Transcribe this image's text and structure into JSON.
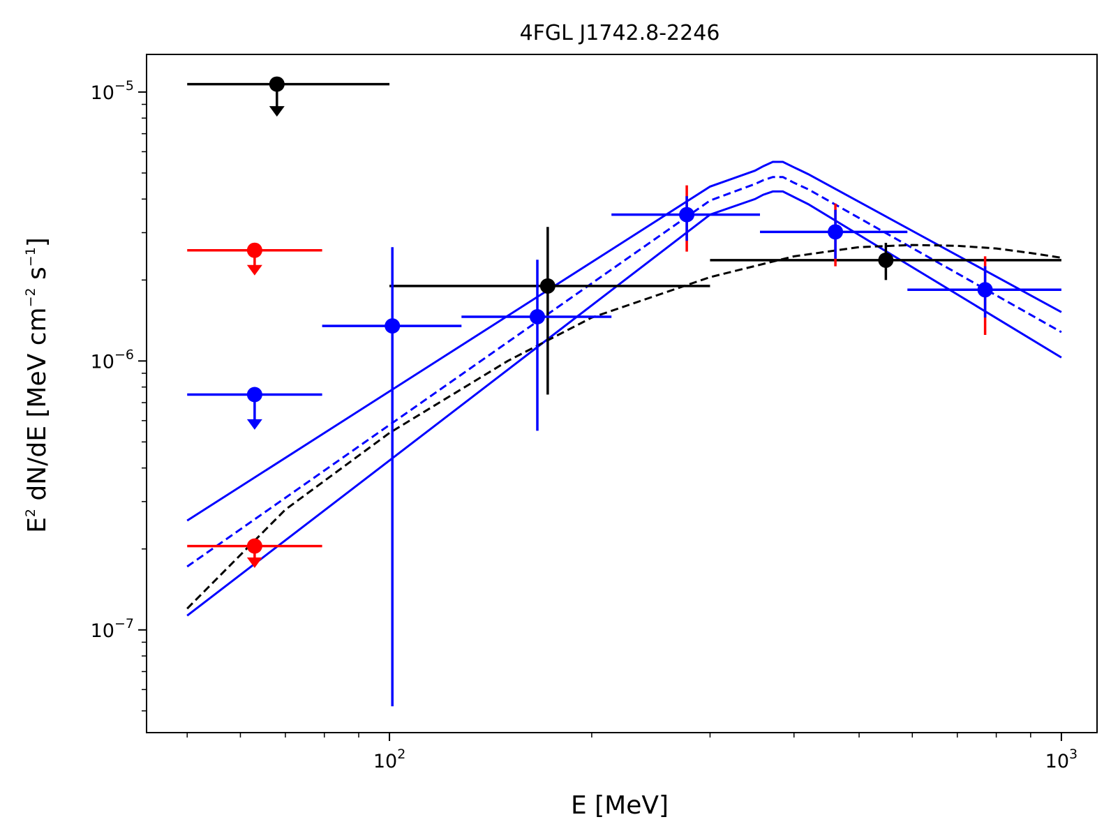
{
  "chart_data": {
    "type": "scatter",
    "title": "4FGL J1742.8-2246",
    "xlabel": "E [MeV]",
    "ylabel": {
      "base": "E",
      "base_sup": "2",
      "mid": " dN/dE [MeV cm",
      "mid_sup": "−2",
      "end": " s",
      "end_sup": "−1",
      "close": "]"
    },
    "xscale": "log",
    "yscale": "log",
    "xlim": [
      43.5,
      1130
    ],
    "ylim": [
      4.15e-08,
      1.38e-05
    ],
    "x_ticks": [
      {
        "value": 100,
        "base": "10",
        "exp": "2"
      },
      {
        "value": 1000,
        "base": "10",
        "exp": "3"
      }
    ],
    "y_ticks": [
      {
        "value": 1e-07,
        "base": "10",
        "exp": "−7"
      },
      {
        "value": 1e-06,
        "base": "10",
        "exp": "−6"
      },
      {
        "value": 1e-05,
        "base": "10",
        "exp": "−5"
      }
    ],
    "grid": false,
    "legend": "none",
    "lines": [
      {
        "color": "#0000ff",
        "dash": "solid",
        "x": [
          50,
          300,
          350,
          360,
          372,
          385,
          400,
          420,
          1000
        ],
        "y": [
          2.55e-07,
          4.45e-06,
          5.1e-06,
          5.3e-06,
          5.5e-06,
          5.5e-06,
          5.25e-06,
          4.95e-06,
          1.52e-06
        ]
      },
      {
        "color": "#0000ff",
        "dash": "dashed",
        "x": [
          50,
          300,
          350,
          360,
          372,
          385,
          400,
          420,
          1000
        ],
        "y": [
          1.72e-07,
          3.95e-06,
          4.55e-06,
          4.7e-06,
          4.83e-06,
          4.83e-06,
          4.6e-06,
          4.35e-06,
          1.28e-06
        ]
      },
      {
        "color": "#0000ff",
        "dash": "solid",
        "x": [
          50,
          300,
          350,
          360,
          372,
          385,
          400,
          420,
          1000
        ],
        "y": [
          1.13e-07,
          3.5e-06,
          4e-06,
          4.15e-06,
          4.27e-06,
          4.27e-06,
          4.07e-06,
          3.83e-06,
          1.03e-06
        ]
      },
      {
        "color": "#000000",
        "dash": "dashed",
        "x": [
          50,
          70,
          100,
          150,
          200,
          300,
          400,
          500,
          600,
          700,
          800,
          900,
          1000
        ],
        "y": [
          1.2e-07,
          2.8e-07,
          5.4e-07,
          1e-06,
          1.45e-06,
          2.05e-06,
          2.45e-06,
          2.65e-06,
          2.7e-06,
          2.68e-06,
          2.62e-06,
          2.52e-06,
          2.42e-06
        ]
      }
    ],
    "points": [
      {
        "color": "#000000",
        "x": 68,
        "xerr": [
          50,
          100
        ],
        "y": 1.07e-05,
        "upper_limit": true,
        "arrow_to": 8.1e-06
      },
      {
        "color": "#000000",
        "x": 172,
        "xerr": [
          100,
          300
        ],
        "y": 1.9e-06,
        "yerr": [
          7.5e-07,
          3.15e-06
        ]
      },
      {
        "color": "#000000",
        "x": 548,
        "xerr": [
          300,
          1000
        ],
        "y": 2.37e-06,
        "yerr": [
          2e-06,
          2.75e-06
        ]
      },
      {
        "color": "#ff0000",
        "x": 63,
        "xerr": [
          50,
          79.4
        ],
        "y": 2.58e-06,
        "upper_limit": true,
        "arrow_to": 2.08e-06
      },
      {
        "color": "#ff0000",
        "x": 63,
        "xerr": [
          50,
          79.4
        ],
        "y": 2.05e-07,
        "upper_limit": true,
        "arrow_to": 1.7e-07
      },
      {
        "color": "#0000ff",
        "x": 63,
        "xerr": [
          50,
          79.4
        ],
        "y": 7.5e-07,
        "upper_limit": true,
        "arrow_to": 5.55e-07
      },
      {
        "color": "#0000ff",
        "x": 101,
        "xerr": [
          79.4,
          128
        ],
        "y": 1.35e-06,
        "yerr": [
          5.2e-08,
          2.65e-06
        ]
      },
      {
        "color": "#0000ff",
        "x": 166,
        "xerr": [
          128,
          214
        ],
        "y": 1.46e-06,
        "yerr": [
          5.5e-07,
          2.38e-06
        ]
      },
      {
        "color": "#0000ff",
        "x": 277,
        "xerr": [
          214,
          356
        ],
        "y": 3.5e-06,
        "yerr": [
          2.8e-06,
          4.1e-06
        ],
        "red_yerr": [
          2.55e-06,
          4.5e-06
        ]
      },
      {
        "color": "#0000ff",
        "x": 461,
        "xerr": [
          356,
          590
        ],
        "y": 3.02e-06,
        "yerr": [
          2.4e-06,
          3.65e-06
        ],
        "red_yerr": [
          2.25e-06,
          3.85e-06
        ]
      },
      {
        "color": "#0000ff",
        "x": 770,
        "xerr": [
          590,
          1000
        ],
        "y": 1.84e-06,
        "yerr": [
          1.45e-06,
          2.25e-06
        ],
        "red_yerr": [
          1.25e-06,
          2.45e-06
        ]
      }
    ]
  }
}
